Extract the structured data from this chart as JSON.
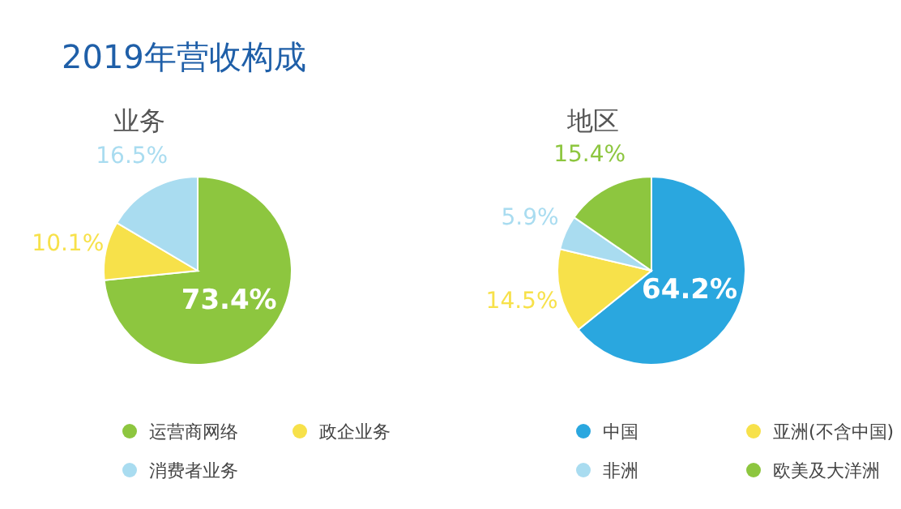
{
  "chart_data": [
    {
      "type": "pie",
      "title": "2019年营收构成",
      "subtitle": "业务",
      "categories": [
        "运营商网络",
        "政企业务",
        "消费者业务"
      ],
      "values": [
        73.4,
        10.1,
        16.5
      ],
      "colors": [
        "#8dc63f",
        "#f7e14a",
        "#a9dcf0"
      ],
      "value_labels": [
        "73.4%",
        "10.1%",
        "16.5%"
      ],
      "legend": "bottom"
    },
    {
      "type": "pie",
      "subtitle": "地区",
      "categories": [
        "中国",
        "亚洲(不含中国)",
        "非洲",
        "欧美及大洋洲"
      ],
      "values": [
        64.2,
        14.5,
        5.9,
        15.4
      ],
      "colors": [
        "#2aa7df",
        "#f7e14a",
        "#a9dcf0",
        "#8dc63f"
      ],
      "value_labels": [
        "64.2%",
        "14.5%",
        "5.9%",
        "15.4%"
      ],
      "legend": "bottom"
    }
  ]
}
